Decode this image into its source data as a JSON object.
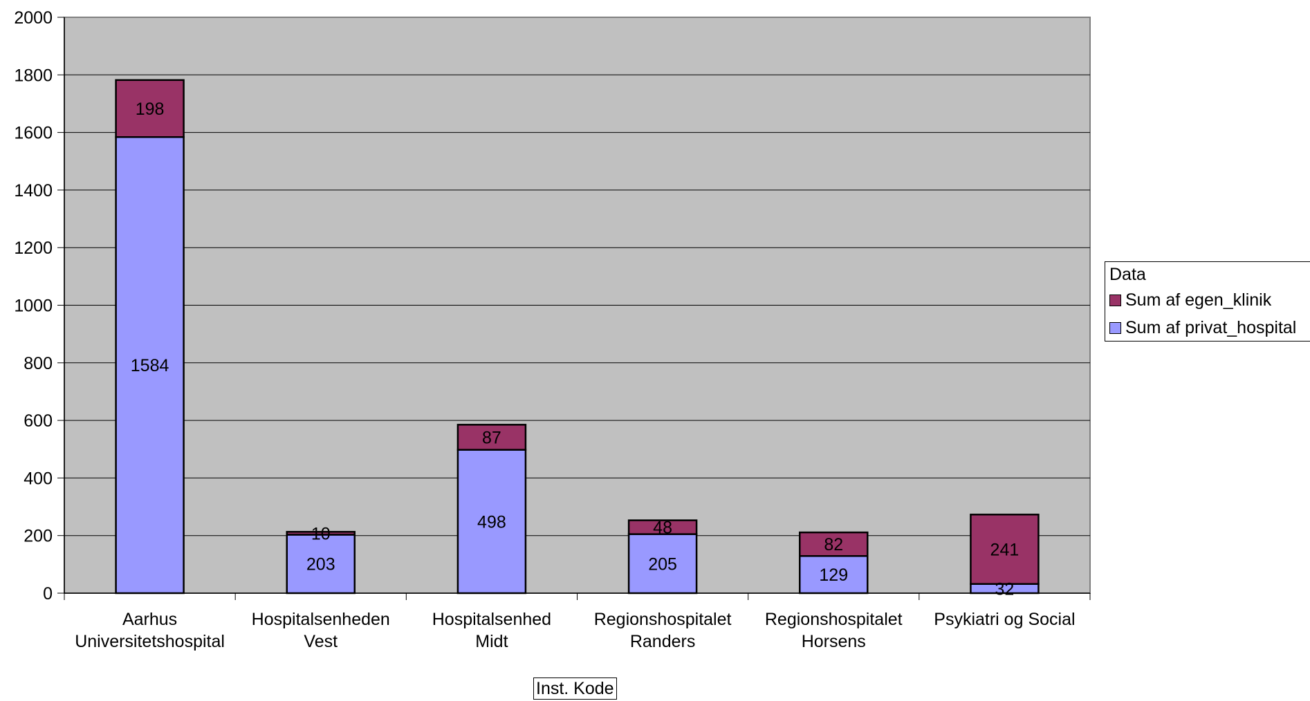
{
  "chart_data": {
    "type": "bar",
    "stacked": true,
    "categories": [
      [
        "Aarhus",
        "Universitetshospital"
      ],
      [
        "Hospitalsenheden",
        "Vest"
      ],
      [
        "Hospitalsenhed",
        "Midt"
      ],
      [
        "Regionshospitalet",
        "Randers"
      ],
      [
        "Regionshospitalet",
        "Horsens"
      ],
      [
        "Psykiatri og Social"
      ]
    ],
    "series": [
      {
        "name": "Sum af privat_hospital",
        "values": [
          1584,
          203,
          498,
          205,
          129,
          32
        ],
        "color": "#9999ff"
      },
      {
        "name": "Sum af egen_klinik",
        "values": [
          198,
          10,
          87,
          48,
          82,
          241
        ],
        "color": "#993366"
      }
    ],
    "xlabel": "Inst. Kode",
    "ylabel": "",
    "ylim": [
      0,
      2000
    ],
    "yticks": [
      0,
      200,
      400,
      600,
      800,
      1000,
      1200,
      1400,
      1600,
      1800,
      2000
    ],
    "grid": true,
    "plot_background": "#c0c0c0",
    "legend_title": "Data",
    "legend_position": "right"
  }
}
